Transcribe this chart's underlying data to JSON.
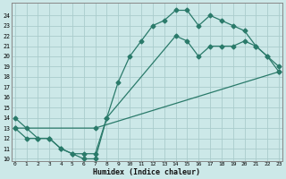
{
  "xlabel": "Humidex (Indice chaleur)",
  "bg_color": "#cce8e8",
  "grid_color": "#aacccc",
  "line_color": "#2a7a6a",
  "line1_x": [
    0,
    1,
    2,
    3,
    4,
    5,
    6,
    7,
    8,
    9,
    10,
    11,
    12,
    13,
    14,
    15,
    16,
    17,
    18,
    19,
    20,
    21,
    22,
    23
  ],
  "line1_y": [
    14,
    13,
    12,
    12,
    11,
    10.5,
    10,
    10,
    14,
    17.5,
    20,
    21.5,
    23,
    23.5,
    24.5,
    24.5,
    23,
    24,
    23.5,
    23,
    22.5,
    21,
    20,
    18.5
  ],
  "line2_x": [
    0,
    1,
    2,
    3,
    4,
    5,
    6,
    7,
    8,
    14,
    15,
    16,
    17,
    18,
    19,
    20,
    21,
    22,
    23
  ],
  "line2_y": [
    13,
    12,
    12,
    12,
    11,
    10.5,
    10.5,
    10.5,
    14,
    22,
    21.5,
    20,
    21,
    21,
    21,
    21.5,
    21,
    20,
    19
  ],
  "line3_x": [
    0,
    7,
    23
  ],
  "line3_y": [
    13,
    13,
    18.5
  ],
  "xlim": [
    0,
    23
  ],
  "ylim": [
    10,
    24.5
  ],
  "yticks": [
    10,
    11,
    12,
    13,
    14,
    15,
    16,
    17,
    18,
    19,
    20,
    21,
    22,
    23,
    24
  ],
  "xticks": [
    0,
    1,
    2,
    3,
    4,
    5,
    6,
    7,
    8,
    9,
    10,
    11,
    12,
    13,
    14,
    15,
    16,
    17,
    18,
    19,
    20,
    21,
    22,
    23
  ],
  "markersize": 2.5,
  "linewidth": 0.9
}
